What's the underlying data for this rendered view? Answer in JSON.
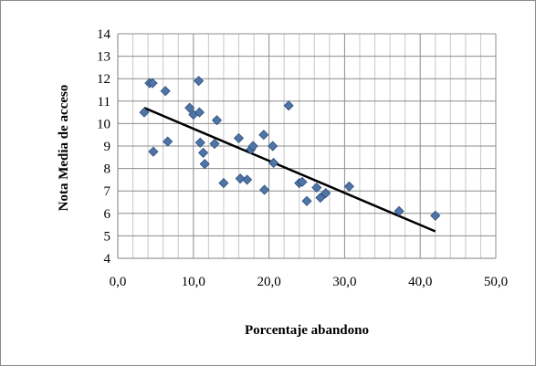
{
  "chart_data": {
    "type": "scatter",
    "xlabel": "Porcentaje abandono",
    "ylabel": "Nota Media de acceso",
    "xlim": [
      0,
      50
    ],
    "ylim": [
      4,
      14
    ],
    "x_ticks": [
      "0,0",
      "10,0",
      "20,0",
      "30,0",
      "40,0",
      "50,0"
    ],
    "y_ticks": [
      "4",
      "5",
      "6",
      "7",
      "8",
      "9",
      "10",
      "11",
      "12",
      "13",
      "14"
    ],
    "x_minor_step": 2,
    "grid": true,
    "marker_color": "#4f74a8",
    "points": [
      [
        3.5,
        10.5
      ],
      [
        4.2,
        11.8
      ],
      [
        4.6,
        11.8
      ],
      [
        4.7,
        8.75
      ],
      [
        6.3,
        11.45
      ],
      [
        6.6,
        9.2
      ],
      [
        9.5,
        10.7
      ],
      [
        10.0,
        10.4
      ],
      [
        10.7,
        11.9
      ],
      [
        10.8,
        10.5
      ],
      [
        10.9,
        9.15
      ],
      [
        11.3,
        8.7
      ],
      [
        11.5,
        8.2
      ],
      [
        12.8,
        9.1
      ],
      [
        13.1,
        10.15
      ],
      [
        14.0,
        7.35
      ],
      [
        16.0,
        9.35
      ],
      [
        16.2,
        7.55
      ],
      [
        17.1,
        7.5
      ],
      [
        17.6,
        8.85
      ],
      [
        17.9,
        9.0
      ],
      [
        19.3,
        9.5
      ],
      [
        19.4,
        7.05
      ],
      [
        20.5,
        9.0
      ],
      [
        20.6,
        8.25
      ],
      [
        22.6,
        10.8
      ],
      [
        24.0,
        7.35
      ],
      [
        24.4,
        7.4
      ],
      [
        25.0,
        6.55
      ],
      [
        26.3,
        7.15
      ],
      [
        26.8,
        6.7
      ],
      [
        27.5,
        6.9
      ],
      [
        30.6,
        7.2
      ],
      [
        37.2,
        6.1
      ],
      [
        42.0,
        5.9
      ]
    ],
    "trendline": {
      "x": [
        3.5,
        42.0
      ],
      "y": [
        10.7,
        5.2
      ]
    }
  }
}
